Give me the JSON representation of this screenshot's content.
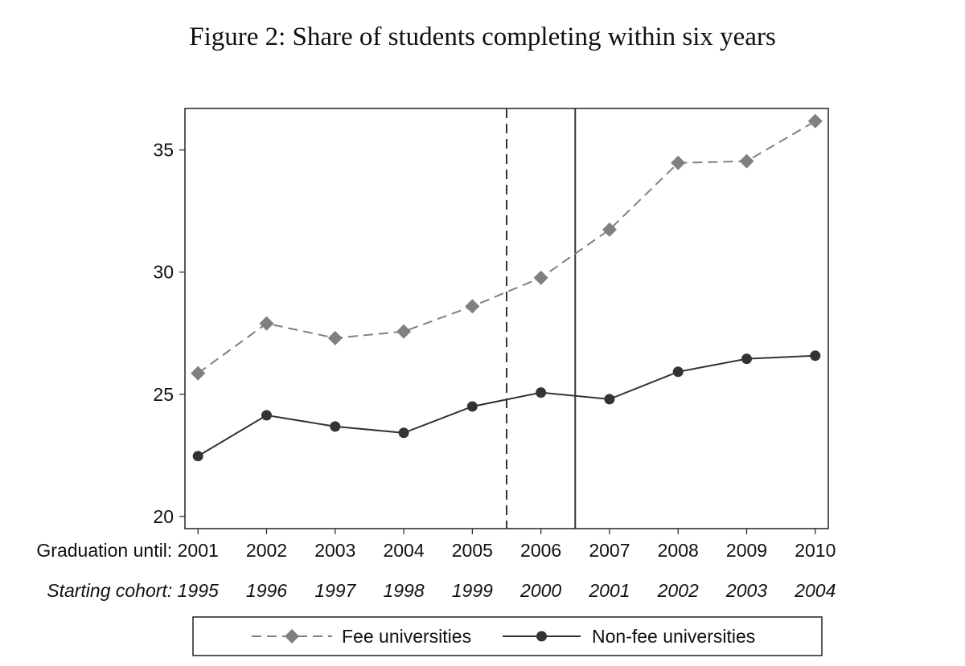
{
  "chart_data": {
    "type": "line",
    "title": "Figure 2: Share of students completing within six years",
    "xlabel": "",
    "ylabel": "",
    "x": [
      2001,
      2002,
      2003,
      2004,
      2005,
      2006,
      2007,
      2008,
      2009,
      2010
    ],
    "x_row_label": "Graduation until:",
    "x_tick_labels": [
      "2001",
      "2002",
      "2003",
      "2004",
      "2005",
      "2006",
      "2007",
      "2008",
      "2009",
      "2010"
    ],
    "cohort_row_label": "Starting cohort:",
    "cohort_labels": [
      "1995",
      "1996",
      "1997",
      "1998",
      "1999",
      "2000",
      "2001",
      "2002",
      "2003",
      "2004"
    ],
    "ylim": [
      19.5,
      36.7
    ],
    "xlim": [
      2000.81,
      2010.19
    ],
    "yticks": [
      20,
      25,
      30,
      35
    ],
    "grid": false,
    "vlines": [
      {
        "x": 2005.5,
        "style": "dashed"
      },
      {
        "x": 2006.5,
        "style": "solid"
      }
    ],
    "series": [
      {
        "name": "Fee universities",
        "marker": "diamond",
        "line": "dashed",
        "color": "#808080",
        "values": [
          25.86,
          27.9,
          27.3,
          27.57,
          28.6,
          29.77,
          31.74,
          34.47,
          34.54,
          36.18
        ]
      },
      {
        "name": "Non-fee universities",
        "marker": "circle",
        "line": "solid",
        "color": "#333333",
        "values": [
          22.47,
          24.14,
          23.68,
          23.42,
          24.5,
          25.07,
          24.8,
          25.92,
          26.45,
          26.58
        ]
      }
    ],
    "legend_position": "bottom"
  }
}
